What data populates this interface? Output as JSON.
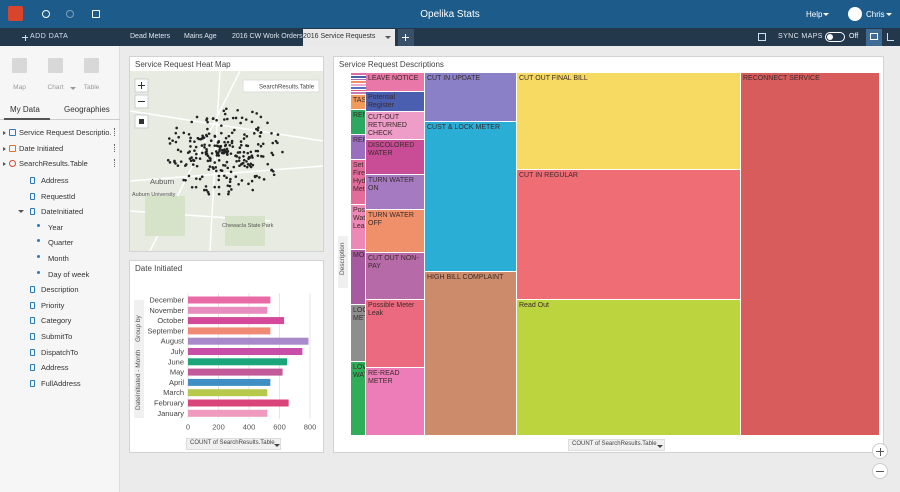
{
  "app": {
    "title": "Opelika Stats",
    "help": "Help",
    "user": "Chris",
    "add_data": "ADD DATA",
    "tabs": [
      "Dead Meters",
      "Mains Age",
      "2016 CW Work Orders",
      "2016 Service Requests"
    ],
    "active_tab": 3,
    "sync_maps": "SYNC MAPS",
    "sync_state": "Off"
  },
  "sidebar": {
    "tools": [
      "Map",
      "Chart",
      "Table"
    ],
    "tabs": [
      "My Data",
      "Geographies"
    ],
    "datasets": [
      "Service Request Descriptio...",
      "Date Initiated",
      "SearchResults.Table"
    ],
    "fields_before": [
      "Address",
      "RequestId",
      "DateInitiated"
    ],
    "date_parts": [
      "Year",
      "Quarter",
      "Month",
      "Day of week"
    ],
    "fields_after": [
      "Description",
      "Priority",
      "Category",
      "SubmitTo",
      "DispatchTo",
      "Address",
      "FullAddress"
    ]
  },
  "map": {
    "title": "Service Request Heat Map",
    "layer": "SearchResults.Table",
    "places": [
      "Auburn",
      "Auburn University",
      "Chewacla State Park"
    ]
  },
  "chart_data": {
    "type": "bar",
    "orientation": "horizontal",
    "title": "Date Initiated",
    "categories": [
      "December",
      "November",
      "October",
      "September",
      "August",
      "July",
      "June",
      "May",
      "April",
      "March",
      "February",
      "January"
    ],
    "values": [
      540,
      520,
      630,
      540,
      790,
      750,
      650,
      620,
      540,
      520,
      660,
      520
    ],
    "colors": [
      "#e86aa6",
      "#e98dbf",
      "#d4499a",
      "#f08a74",
      "#a889c9",
      "#c94ea7",
      "#1aa57a",
      "#c25a9a",
      "#3f8fc4",
      "#b7c94a",
      "#d9457a",
      "#f09abf"
    ],
    "xlim": [
      0,
      800
    ],
    "xticks": [
      0,
      200,
      400,
      600,
      800
    ],
    "grid": true,
    "group_by": "Group by",
    "y_field": "DateInitiated - Month",
    "x_field": "COUNT of SearchResults.Table"
  },
  "treemap": {
    "title": "Service Request Descriptions",
    "group_field": "Description",
    "size_field": "COUNT of SearchResults.Table",
    "tiles": [
      {
        "label": "LEAVE NOTICE",
        "color": "#e978a8"
      },
      {
        "label": "Potential Register",
        "color": "#4a5fb0"
      },
      {
        "label": "CUT-OUT RETURNED CHECK",
        "color": "#ee9cc8"
      },
      {
        "label": "DISCOLORED WATER",
        "color": "#c94c97"
      },
      {
        "label": "TURN WATER ON",
        "color": "#a57ac0"
      },
      {
        "label": "TURN WATER OFF",
        "color": "#f0906a"
      },
      {
        "label": "CUT OUT NON-PAY",
        "color": "#b66aa8"
      },
      {
        "label": "Possible Meter Leak",
        "color": "#ec6a80"
      },
      {
        "label": "RE-READ METER",
        "color": "#ec7db8"
      },
      {
        "label": "CUT IN UPDATE",
        "color": "#8a80c8"
      },
      {
        "label": "CUST & LOCK METER",
        "color": "#2aaed6"
      },
      {
        "label": "HIGH BILL COMPLAINT",
        "color": "#cc8c6c"
      },
      {
        "label": "CUT OUT FINAL BILL",
        "color": "#f7da62"
      },
      {
        "label": "CUT IN REGULAR",
        "color": "#ef6e76"
      },
      {
        "label": "Read Out",
        "color": "#bcd43e"
      },
      {
        "label": "RECONNECT SERVICE",
        "color": "#d95c5c"
      },
      {
        "label": "TAS",
        "color": "#f29b5a"
      },
      {
        "label": "REN",
        "color": "#2ca860"
      },
      {
        "label": "REP",
        "color": "#9b6fc0"
      },
      {
        "label": "Set Fire Hyd Mete",
        "color": "#e46c9a"
      },
      {
        "label": "Possi Wate Leak",
        "color": "#ee88b6"
      },
      {
        "label": "MOI",
        "color": "#a85aa0"
      },
      {
        "label": "LOC MET",
        "color": "#8e8e8e"
      },
      {
        "label": "LOW WAT",
        "color": "#2fae5a"
      }
    ]
  }
}
